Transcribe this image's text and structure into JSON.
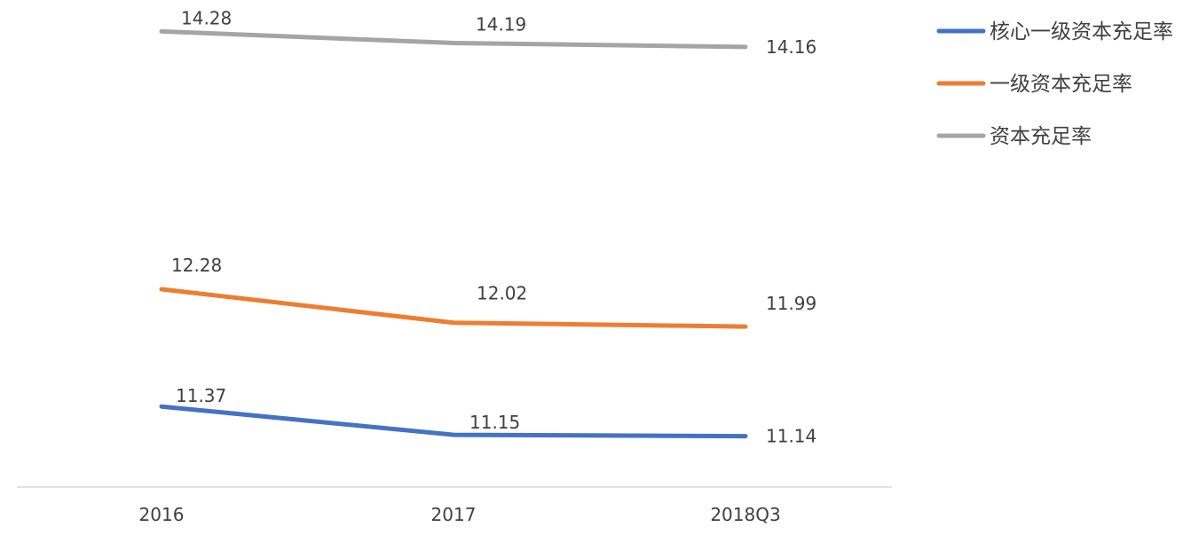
{
  "chart_data": {
    "type": "line",
    "categories": [
      "2016",
      "2017",
      "2018Q3"
    ],
    "series": [
      {
        "name": "核心一级资本充足率",
        "color": "#4472C4",
        "values": [
          11.37,
          11.15,
          11.14
        ]
      },
      {
        "name": "一级资本充足率",
        "color": "#ED7D31",
        "values": [
          12.28,
          12.02,
          11.99
        ]
      },
      {
        "name": "资本充足率",
        "color": "#A5A5A5",
        "values": [
          14.28,
          14.19,
          14.16
        ]
      }
    ],
    "data_labels": [
      [
        "11.37",
        "11.15",
        "11.14"
      ],
      [
        "12.28",
        "12.02",
        "11.99"
      ],
      [
        "14.28",
        "14.19",
        "14.16"
      ]
    ],
    "ylim": [
      10.7,
      14.4
    ],
    "grid": false,
    "legend_position": "right"
  }
}
